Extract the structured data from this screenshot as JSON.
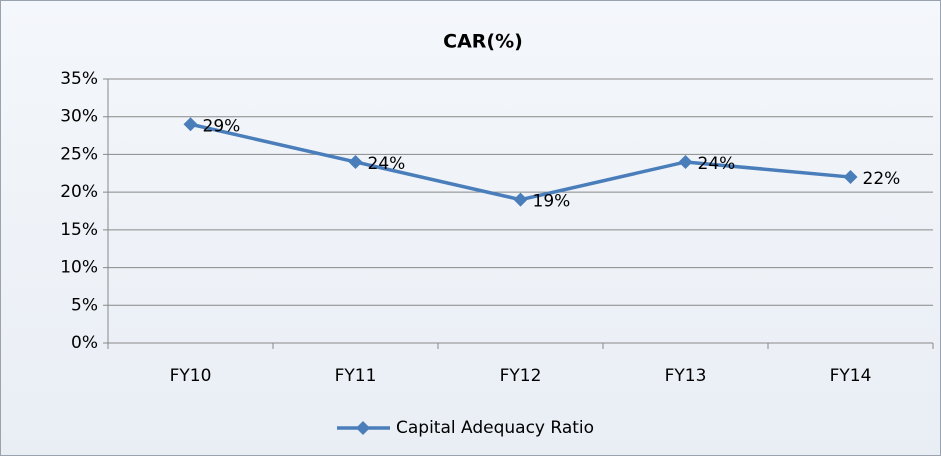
{
  "chart_data": {
    "type": "line",
    "title": "CAR(%)",
    "categories": [
      "FY10",
      "FY11",
      "FY12",
      "FY13",
      "FY14"
    ],
    "series": [
      {
        "name": "Capital Adequacy Ratio",
        "color": "#4a7ebb",
        "values": [
          29,
          24,
          19,
          24,
          22
        ],
        "value_labels": [
          "29%",
          "24%",
          "19%",
          "24%",
          "22%"
        ]
      }
    ],
    "ylim": [
      0,
      35
    ],
    "yticks": [
      {
        "value": 0,
        "label": "0%"
      },
      {
        "value": 5,
        "label": "5%"
      },
      {
        "value": 10,
        "label": "10%"
      },
      {
        "value": 15,
        "label": "15%"
      },
      {
        "value": 20,
        "label": "20%"
      },
      {
        "value": 25,
        "label": "25%"
      },
      {
        "value": 30,
        "label": "30%"
      },
      {
        "value": 35,
        "label": "35%"
      }
    ],
    "grid": true,
    "legend": "bottom"
  }
}
